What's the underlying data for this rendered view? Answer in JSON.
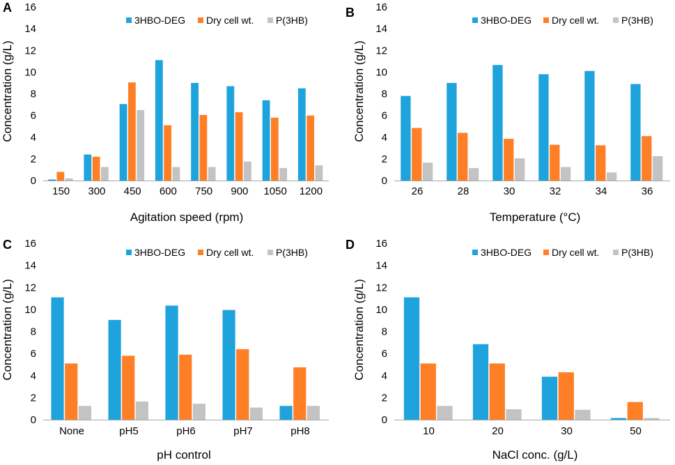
{
  "colors": {
    "s0": "#1fa3dc",
    "s1": "#ff7f27",
    "s2": "#c3c3c3",
    "axis": "#a6a6a6"
  },
  "chart_data": [
    {
      "panel": "A",
      "type": "bar",
      "xlabel": "Agitation speed (rpm)",
      "ylabel": "Concentration (g/L)",
      "ylim": [
        0,
        16
      ],
      "yticks": [
        "0",
        "2",
        "4",
        "6",
        "8",
        "10",
        "12",
        "14",
        "16"
      ],
      "categories": [
        "150",
        "300",
        "450",
        "600",
        "750",
        "900",
        "1050",
        "1200"
      ],
      "legend_position": "top-right",
      "series": [
        {
          "name": "3HBO-DEG",
          "values": [
            0.1,
            2.4,
            7.05,
            11.1,
            9.0,
            8.7,
            7.4,
            8.5
          ]
        },
        {
          "name": "Dry cell wt.",
          "values": [
            0.8,
            2.2,
            9.05,
            5.1,
            6.05,
            6.3,
            5.8,
            6.0
          ]
        },
        {
          "name": "P(3HB)",
          "values": [
            0.2,
            1.25,
            6.5,
            1.25,
            1.25,
            1.75,
            1.15,
            1.4
          ]
        }
      ]
    },
    {
      "panel": "B",
      "type": "bar",
      "xlabel": "Temperature (°C)",
      "ylabel": "Concentration (g/L)",
      "ylim": [
        0,
        16
      ],
      "yticks": [
        "0",
        "2",
        "4",
        "6",
        "8",
        "10",
        "12",
        "14",
        "16"
      ],
      "categories": [
        "26",
        "28",
        "30",
        "32",
        "34",
        "36"
      ],
      "legend_position": "top-right",
      "series": [
        {
          "name": "3HBO-DEG",
          "values": [
            7.8,
            9.0,
            10.65,
            9.8,
            10.1,
            8.9
          ]
        },
        {
          "name": "Dry cell wt.",
          "values": [
            4.85,
            4.4,
            3.85,
            3.3,
            3.25,
            4.1
          ]
        },
        {
          "name": "P(3HB)",
          "values": [
            1.65,
            1.15,
            2.05,
            1.25,
            0.75,
            2.25
          ]
        }
      ]
    },
    {
      "panel": "C",
      "type": "bar",
      "xlabel": "pH control",
      "ylabel": "Concentration (g/L)",
      "ylim": [
        0,
        16
      ],
      "yticks": [
        "0",
        "2",
        "4",
        "6",
        "8",
        "10",
        "12",
        "14",
        "16"
      ],
      "categories": [
        "None",
        "pH5",
        "pH6",
        "pH7",
        "pH8"
      ],
      "legend_position": "top-right",
      "series": [
        {
          "name": "3HBO-DEG",
          "values": [
            11.1,
            9.05,
            10.35,
            9.95,
            1.25
          ]
        },
        {
          "name": "Dry cell wt.",
          "values": [
            5.1,
            5.8,
            5.9,
            6.4,
            4.75
          ]
        },
        {
          "name": "P(3HB)",
          "values": [
            1.25,
            1.65,
            1.45,
            1.1,
            1.25
          ]
        }
      ]
    },
    {
      "panel": "D",
      "type": "bar",
      "xlabel": "NaCl conc. (g/L)",
      "ylabel": "Concentration (g/L)",
      "ylim": [
        0,
        16
      ],
      "yticks": [
        "0",
        "2",
        "4",
        "6",
        "8",
        "10",
        "12",
        "14",
        "16"
      ],
      "categories": [
        "10",
        "20",
        "30",
        "50"
      ],
      "legend_position": "top-right",
      "series": [
        {
          "name": "3HBO-DEG",
          "values": [
            11.1,
            6.85,
            3.9,
            0.15
          ]
        },
        {
          "name": "Dry cell wt.",
          "values": [
            5.1,
            5.1,
            4.3,
            1.6
          ]
        },
        {
          "name": "P(3HB)",
          "values": [
            1.25,
            0.95,
            0.9,
            0.15
          ]
        }
      ]
    }
  ]
}
